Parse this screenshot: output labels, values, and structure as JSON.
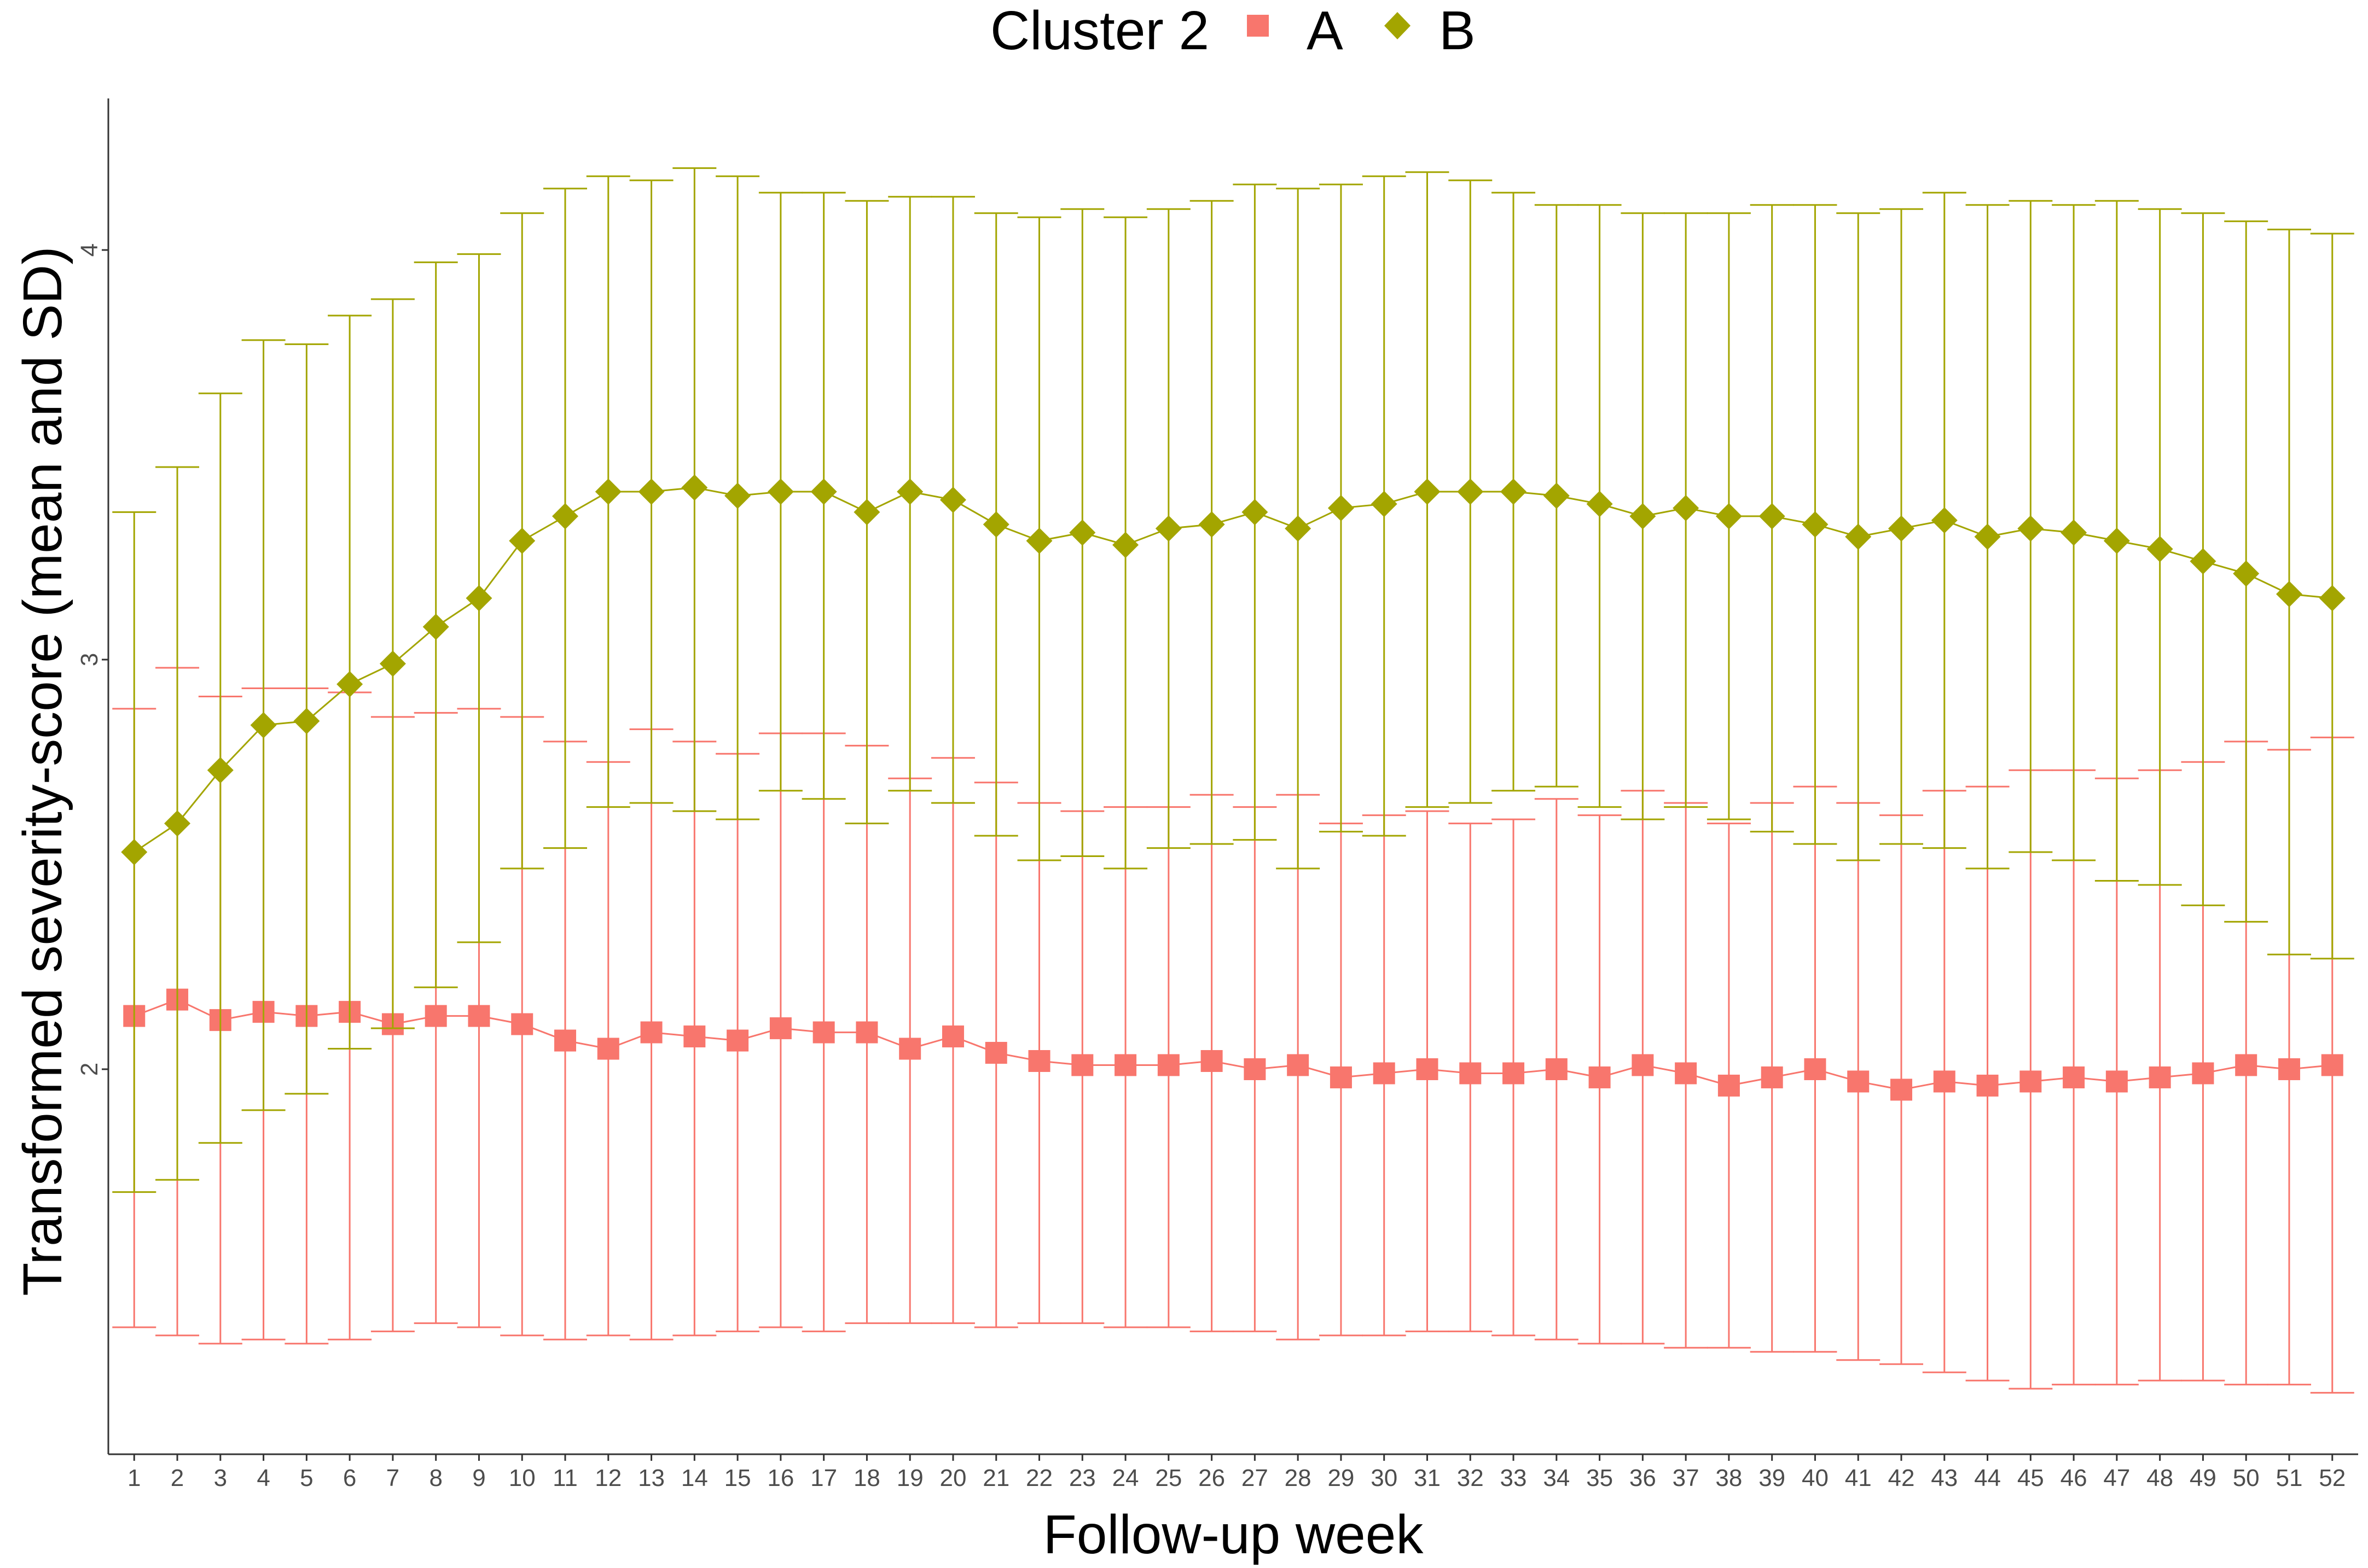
{
  "chart_data": {
    "type": "line",
    "title": "",
    "xlabel": "Follow-up week",
    "ylabel": "Transformed severity-score (mean and SD)",
    "legend": {
      "title": "Cluster 2",
      "placement": "top"
    },
    "x": [
      1,
      2,
      3,
      4,
      5,
      6,
      7,
      8,
      9,
      10,
      11,
      12,
      13,
      14,
      15,
      16,
      17,
      18,
      19,
      20,
      21,
      22,
      23,
      24,
      25,
      26,
      27,
      28,
      29,
      30,
      31,
      32,
      33,
      34,
      35,
      36,
      37,
      38,
      39,
      40,
      41,
      42,
      43,
      44,
      45,
      46,
      47,
      48,
      49,
      50,
      51,
      52
    ],
    "xlim": [
      0.4,
      52.6
    ],
    "ylim": [
      1.06,
      4.37
    ],
    "yticks": [
      2,
      3,
      4
    ],
    "grid": false,
    "error_bars": "mean ± SD",
    "series": [
      {
        "name": "A",
        "color": "#F8766D",
        "marker": "square",
        "mean": [
          2.13,
          2.17,
          2.12,
          2.14,
          2.13,
          2.14,
          2.11,
          2.13,
          2.13,
          2.11,
          2.07,
          2.05,
          2.09,
          2.08,
          2.07,
          2.1,
          2.09,
          2.09,
          2.05,
          2.08,
          2.04,
          2.02,
          2.01,
          2.01,
          2.01,
          2.02,
          2.0,
          2.01,
          1.98,
          1.99,
          2.0,
          1.99,
          1.99,
          2.0,
          1.98,
          2.01,
          1.99,
          1.96,
          1.98,
          2.0,
          1.97,
          1.95,
          1.97,
          1.96,
          1.97,
          1.98,
          1.97,
          1.98,
          1.99,
          2.01,
          2.0,
          2.01
        ],
        "sd_low": [
          1.37,
          1.35,
          1.33,
          1.34,
          1.33,
          1.34,
          1.36,
          1.38,
          1.37,
          1.35,
          1.34,
          1.35,
          1.34,
          1.35,
          1.36,
          1.37,
          1.36,
          1.38,
          1.38,
          1.38,
          1.37,
          1.38,
          1.38,
          1.37,
          1.37,
          1.36,
          1.36,
          1.34,
          1.35,
          1.35,
          1.36,
          1.36,
          1.35,
          1.34,
          1.33,
          1.33,
          1.32,
          1.32,
          1.31,
          1.31,
          1.29,
          1.28,
          1.26,
          1.24,
          1.22,
          1.23,
          1.23,
          1.24,
          1.24,
          1.23,
          1.23,
          1.21
        ],
        "sd_high": [
          2.88,
          2.98,
          2.91,
          2.93,
          2.93,
          2.92,
          2.86,
          2.87,
          2.88,
          2.86,
          2.8,
          2.75,
          2.83,
          2.8,
          2.77,
          2.82,
          2.82,
          2.79,
          2.71,
          2.76,
          2.7,
          2.65,
          2.63,
          2.64,
          2.64,
          2.67,
          2.64,
          2.67,
          2.6,
          2.62,
          2.63,
          2.6,
          2.61,
          2.66,
          2.62,
          2.68,
          2.65,
          2.6,
          2.65,
          2.69,
          2.65,
          2.62,
          2.68,
          2.69,
          2.73,
          2.73,
          2.71,
          2.73,
          2.75,
          2.8,
          2.78,
          2.81
        ]
      },
      {
        "name": "B",
        "color": "#A3A500",
        "marker": "diamond",
        "mean": [
          2.53,
          2.6,
          2.73,
          2.84,
          2.85,
          2.94,
          2.99,
          3.08,
          3.15,
          3.29,
          3.35,
          3.41,
          3.41,
          3.42,
          3.4,
          3.41,
          3.41,
          3.36,
          3.41,
          3.39,
          3.33,
          3.29,
          3.31,
          3.28,
          3.32,
          3.33,
          3.36,
          3.32,
          3.37,
          3.38,
          3.41,
          3.41,
          3.41,
          3.4,
          3.38,
          3.35,
          3.37,
          3.35,
          3.35,
          3.33,
          3.3,
          3.32,
          3.34,
          3.3,
          3.32,
          3.31,
          3.29,
          3.27,
          3.24,
          3.21,
          3.16,
          3.15
        ],
        "sd_low": [
          1.7,
          1.73,
          1.82,
          1.9,
          1.94,
          2.05,
          2.1,
          2.2,
          2.31,
          2.49,
          2.54,
          2.64,
          2.65,
          2.63,
          2.61,
          2.68,
          2.66,
          2.6,
          2.68,
          2.65,
          2.57,
          2.51,
          2.52,
          2.49,
          2.54,
          2.55,
          2.56,
          2.49,
          2.58,
          2.57,
          2.64,
          2.65,
          2.68,
          2.69,
          2.64,
          2.61,
          2.64,
          2.61,
          2.58,
          2.55,
          2.51,
          2.55,
          2.54,
          2.49,
          2.53,
          2.51,
          2.46,
          2.45,
          2.4,
          2.36,
          2.28,
          2.27
        ],
        "sd_high": [
          3.36,
          3.47,
          3.65,
          3.78,
          3.77,
          3.84,
          3.88,
          3.97,
          3.99,
          4.09,
          4.15,
          4.18,
          4.17,
          4.2,
          4.18,
          4.14,
          4.14,
          4.12,
          4.13,
          4.13,
          4.09,
          4.08,
          4.1,
          4.08,
          4.1,
          4.12,
          4.16,
          4.15,
          4.16,
          4.18,
          4.19,
          4.17,
          4.14,
          4.11,
          4.11,
          4.09,
          4.09,
          4.09,
          4.11,
          4.11,
          4.09,
          4.1,
          4.14,
          4.11,
          4.12,
          4.11,
          4.12,
          4.1,
          4.09,
          4.07,
          4.05,
          4.04
        ]
      }
    ]
  }
}
